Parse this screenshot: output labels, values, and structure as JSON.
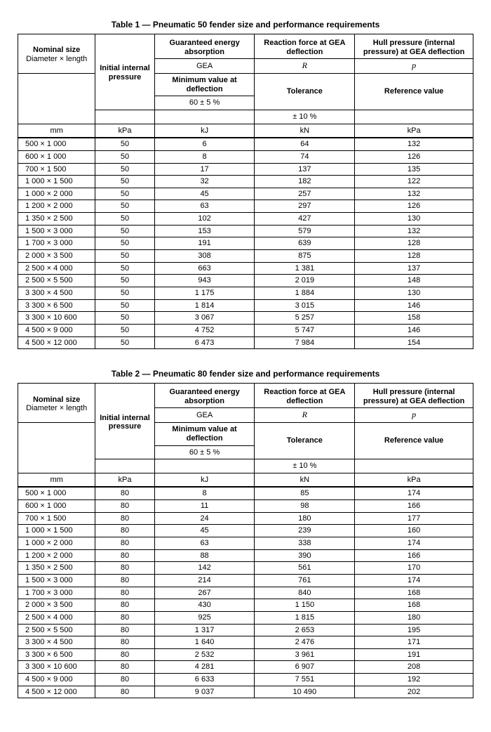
{
  "tables": [
    {
      "title": "Table 1 — Pneumatic 50 fender size and performance requirements",
      "header": {
        "nominal_line1": "Nominal size",
        "nominal_line2": "Diameter × length",
        "initial_pressure": "Initial internal pressure",
        "gea_top": "Guaranteed energy absorption",
        "gea_sym": "GEA",
        "gea_sub1": "Minimum value at deflection",
        "gea_sub2": "60 ± 5 %",
        "r_top": "Reaction force at GEA deflection",
        "r_sym": "R",
        "r_sub1": "Tolerance",
        "r_sub2": "± 10 %",
        "p_top": "Hull pressure (internal pressure) at GEA deflection",
        "p_sym": "p",
        "p_sub1": "Reference value",
        "units": {
          "mm": "mm",
          "kpa": "kPa",
          "kj": "kJ",
          "kn": "kN",
          "kpa2": "kPa"
        }
      },
      "rows": [
        {
          "size": "500 × 1 000",
          "ip": "50",
          "gea": "6",
          "r": "64",
          "p": "132"
        },
        {
          "size": "600 × 1 000",
          "ip": "50",
          "gea": "8",
          "r": "74",
          "p": "126"
        },
        {
          "size": "700 × 1 500",
          "ip": "50",
          "gea": "17",
          "r": "137",
          "p": "135"
        },
        {
          "size": "1 000 × 1 500",
          "ip": "50",
          "gea": "32",
          "r": "182",
          "p": "122"
        },
        {
          "size": "1 000 × 2 000",
          "ip": "50",
          "gea": "45",
          "r": "257",
          "p": "132"
        },
        {
          "size": "1 200 × 2 000",
          "ip": "50",
          "gea": "63",
          "r": "297",
          "p": "126"
        },
        {
          "size": "1 350 × 2 500",
          "ip": "50",
          "gea": "102",
          "r": "427",
          "p": "130"
        },
        {
          "size": "1 500 × 3 000",
          "ip": "50",
          "gea": "153",
          "r": "579",
          "p": "132"
        },
        {
          "size": "1 700 × 3 000",
          "ip": "50",
          "gea": "191",
          "r": "639",
          "p": "128"
        },
        {
          "size": "2 000 × 3 500",
          "ip": "50",
          "gea": "308",
          "r": "875",
          "p": "128"
        },
        {
          "size": "2 500 × 4 000",
          "ip": "50",
          "gea": "663",
          "r": "1 381",
          "p": "137"
        },
        {
          "size": "2 500 × 5 500",
          "ip": "50",
          "gea": "943",
          "r": "2 019",
          "p": "148"
        },
        {
          "size": "3 300 × 4 500",
          "ip": "50",
          "gea": "1 175",
          "r": "1 884",
          "p": "130"
        },
        {
          "size": "3 300 × 6 500",
          "ip": "50",
          "gea": "1 814",
          "r": "3 015",
          "p": "146"
        },
        {
          "size": "3 300 × 10 600",
          "ip": "50",
          "gea": "3 067",
          "r": "5 257",
          "p": "158"
        },
        {
          "size": "4 500 × 9 000",
          "ip": "50",
          "gea": "4 752",
          "r": "5 747",
          "p": "146"
        },
        {
          "size": "4 500 × 12 000",
          "ip": "50",
          "gea": "6 473",
          "r": "7 984",
          "p": "154"
        }
      ]
    },
    {
      "title": "Table 2 — Pneumatic 80 fender size and performance requirements",
      "header": {
        "nominal_line1": "Nominal size",
        "nominal_line2": "Diameter × length",
        "initial_pressure": "Initial internal pressure",
        "gea_top": "Guaranteed energy absorption",
        "gea_sym": "GEA",
        "gea_sub1": "Minimum value at deflection",
        "gea_sub2": "60 ± 5 %",
        "r_top": "Reaction force at GEA deflection",
        "r_sym": "R",
        "r_sub1": "Tolerance",
        "r_sub2": "± 10 %",
        "p_top": "Hull pressure (internal pressure) at GEA deflection",
        "p_sym": "p",
        "p_sub1": "Reference value",
        "units": {
          "mm": "mm",
          "kpa": "kPa",
          "kj": "kJ",
          "kn": "kN",
          "kpa2": "kPa"
        }
      },
      "rows": [
        {
          "size": "500 × 1 000",
          "ip": "80",
          "gea": "8",
          "r": "85",
          "p": "174"
        },
        {
          "size": "600 × 1 000",
          "ip": "80",
          "gea": "11",
          "r": "98",
          "p": "166"
        },
        {
          "size": "700 × 1 500",
          "ip": "80",
          "gea": "24",
          "r": "180",
          "p": "177"
        },
        {
          "size": "1 000 × 1 500",
          "ip": "80",
          "gea": "45",
          "r": "239",
          "p": "160"
        },
        {
          "size": "1 000 × 2 000",
          "ip": "80",
          "gea": "63",
          "r": "338",
          "p": "174"
        },
        {
          "size": "1 200 × 2 000",
          "ip": "80",
          "gea": "88",
          "r": "390",
          "p": "166"
        },
        {
          "size": "1 350 × 2 500",
          "ip": "80",
          "gea": "142",
          "r": "561",
          "p": "170"
        },
        {
          "size": "1 500 × 3 000",
          "ip": "80",
          "gea": "214",
          "r": "761",
          "p": "174"
        },
        {
          "size": "1 700 × 3 000",
          "ip": "80",
          "gea": "267",
          "r": "840",
          "p": "168"
        },
        {
          "size": "2 000 × 3 500",
          "ip": "80",
          "gea": "430",
          "r": "1 150",
          "p": "168"
        },
        {
          "size": "2 500 × 4 000",
          "ip": "80",
          "gea": "925",
          "r": "1 815",
          "p": "180"
        },
        {
          "size": "2 500 × 5 500",
          "ip": "80",
          "gea": "1 317",
          "r": "2 653",
          "p": "195"
        },
        {
          "size": "3 300 × 4 500",
          "ip": "80",
          "gea": "1 640",
          "r": "2 476",
          "p": "171"
        },
        {
          "size": "3 300 × 6 500",
          "ip": "80",
          "gea": "2 532",
          "r": "3 961",
          "p": "191"
        },
        {
          "size": "3 300 × 10 600",
          "ip": "80",
          "gea": "4 281",
          "r": "6 907",
          "p": "208"
        },
        {
          "size": "4 500 × 9 000",
          "ip": "80",
          "gea": "6 633",
          "r": "7 551",
          "p": "192"
        },
        {
          "size": "4 500 × 12 000",
          "ip": "80",
          "gea": "9 037",
          "r": "10 490",
          "p": "202"
        }
      ]
    }
  ]
}
